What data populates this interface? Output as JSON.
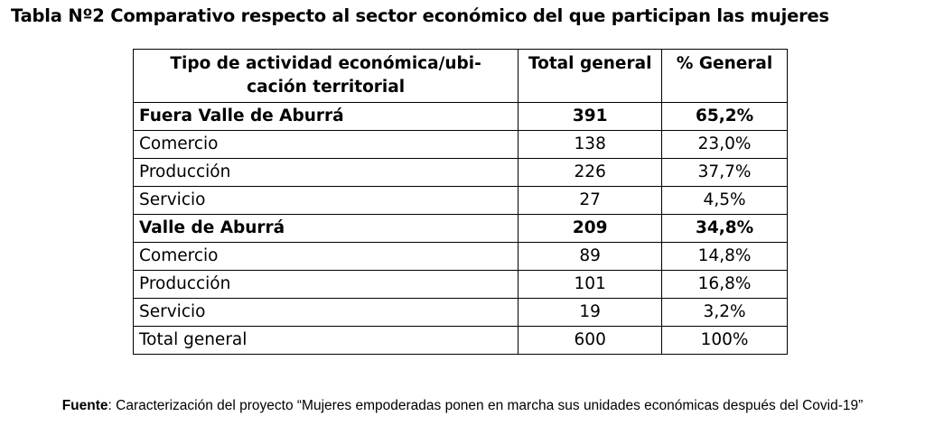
{
  "title": "Tabla Nº2 Comparativo respecto al sector económico del que participan las mujeres",
  "table": {
    "headers": [
      "Tipo de actividad económica/ubi-cación territorial",
      "Total general",
      "% General"
    ],
    "rows": [
      {
        "label": "Fuera Valle de Aburrá",
        "total": "391",
        "pct": "65,2%",
        "bold": true
      },
      {
        "label": "Comercio",
        "total": "138",
        "pct": "23,0%",
        "bold": false
      },
      {
        "label": "Producción",
        "total": "226",
        "pct": "37,7%",
        "bold": false
      },
      {
        "label": "Servicio",
        "total": "27",
        "pct": "4,5%",
        "bold": false
      },
      {
        "label": "Valle de Aburrá",
        "total": "209",
        "pct": "34,8%",
        "bold": true
      },
      {
        "label": "Comercio",
        "total": "89",
        "pct": "14,8%",
        "bold": false
      },
      {
        "label": "Producción",
        "total": "101",
        "pct": "16,8%",
        "bold": false
      },
      {
        "label": "Servicio",
        "total": "19",
        "pct": "3,2%",
        "bold": false
      },
      {
        "label": "Total general",
        "total": "600",
        "pct": "100%",
        "bold": false
      }
    ]
  },
  "source": {
    "label": "Fuente",
    "text": ": Caracterización del proyecto “Mujeres empoderadas ponen en marcha sus unidades económicas después del Covid-19”"
  }
}
